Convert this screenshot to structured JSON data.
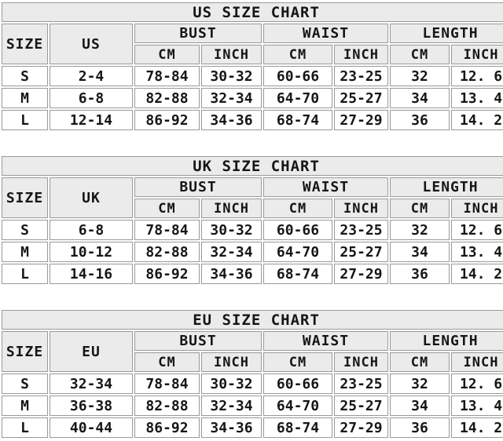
{
  "colors": {
    "background": "#ffffff",
    "header_fill": "#ebebeb",
    "cell_border": "#999999",
    "text": "#161616"
  },
  "tables": [
    {
      "id": "us",
      "title": "US SIZE CHART",
      "size_label": "SIZE",
      "region_label": "US",
      "groups": [
        "BUST",
        "WAIST",
        "LENGTH"
      ],
      "units": [
        "CM",
        "INCH",
        "CM",
        "INCH",
        "CM",
        "INCH"
      ],
      "rows": [
        [
          "S",
          "2-4",
          "78-84",
          "30-32",
          "60-66",
          "23-25",
          "32",
          "12. 6"
        ],
        [
          "M",
          "6-8",
          "82-88",
          "32-34",
          "64-70",
          "25-27",
          "34",
          "13. 4"
        ],
        [
          "L",
          "12-14",
          "86-92",
          "34-36",
          "68-74",
          "27-29",
          "36",
          "14. 2"
        ]
      ]
    },
    {
      "id": "uk",
      "title": "UK SIZE CHART",
      "size_label": "SIZE",
      "region_label": "UK",
      "groups": [
        "BUST",
        "WAIST",
        "LENGTH"
      ],
      "units": [
        "CM",
        "INCH",
        "CM",
        "INCH",
        "CM",
        "INCH"
      ],
      "rows": [
        [
          "S",
          "6-8",
          "78-84",
          "30-32",
          "60-66",
          "23-25",
          "32",
          "12. 6"
        ],
        [
          "M",
          "10-12",
          "82-88",
          "32-34",
          "64-70",
          "25-27",
          "34",
          "13. 4"
        ],
        [
          "L",
          "14-16",
          "86-92",
          "34-36",
          "68-74",
          "27-29",
          "36",
          "14. 2"
        ]
      ]
    },
    {
      "id": "eu",
      "title": "EU SIZE CHART",
      "size_label": "SIZE",
      "region_label": "EU",
      "groups": [
        "BUST",
        "WAIST",
        "LENGTH"
      ],
      "units": [
        "CM",
        "INCH",
        "CM",
        "INCH",
        "CM",
        "INCH"
      ],
      "rows": [
        [
          "S",
          "32-34",
          "78-84",
          "30-32",
          "60-66",
          "23-25",
          "32",
          "12. 6"
        ],
        [
          "M",
          "36-38",
          "82-88",
          "32-34",
          "64-70",
          "25-27",
          "34",
          "13. 4"
        ],
        [
          "L",
          "40-44",
          "86-92",
          "34-36",
          "68-74",
          "27-29",
          "36",
          "14. 2"
        ]
      ]
    }
  ]
}
